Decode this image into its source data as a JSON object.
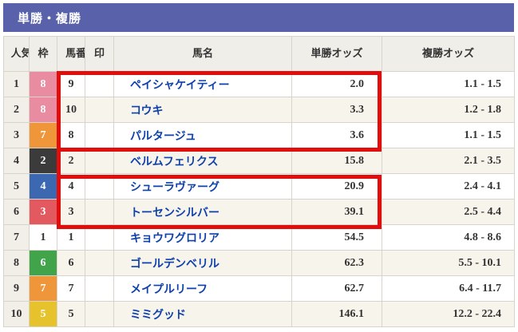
{
  "title_bar": {
    "title": "単勝・複勝"
  },
  "table": {
    "columns": [
      {
        "key": "rank",
        "label": "人気"
      },
      {
        "key": "waku",
        "label": "枠"
      },
      {
        "key": "uma",
        "label": "馬番"
      },
      {
        "key": "mark",
        "label": "印"
      },
      {
        "key": "name",
        "label": "馬名"
      },
      {
        "key": "win",
        "label": "単勝オッズ"
      },
      {
        "key": "place",
        "label": "複勝オッズ"
      }
    ],
    "rows": [
      {
        "rank": "1",
        "waku": "8",
        "uma": "9",
        "mark": "",
        "name": "ペイシャケイティー",
        "win": "2.0",
        "place": "1.1 - 1.5"
      },
      {
        "rank": "2",
        "waku": "8",
        "uma": "10",
        "mark": "",
        "name": "コウキ",
        "win": "3.3",
        "place": "1.2 - 1.8"
      },
      {
        "rank": "3",
        "waku": "7",
        "uma": "8",
        "mark": "",
        "name": "パルタージュ",
        "win": "3.6",
        "place": "1.1 - 1.5"
      },
      {
        "rank": "4",
        "waku": "2",
        "uma": "2",
        "mark": "",
        "name": "ベルムフェリクス",
        "win": "15.8",
        "place": "2.1 - 3.5"
      },
      {
        "rank": "5",
        "waku": "4",
        "uma": "4",
        "mark": "",
        "name": "シューラヴァーグ",
        "win": "20.9",
        "place": "2.4 - 4.1"
      },
      {
        "rank": "6",
        "waku": "3",
        "uma": "3",
        "mark": "",
        "name": "トーセンシルバー",
        "win": "39.1",
        "place": "2.5 - 4.4"
      },
      {
        "rank": "7",
        "waku": "1",
        "uma": "1",
        "mark": "",
        "name": "キョウワグロリア",
        "win": "54.5",
        "place": "4.8 - 8.6"
      },
      {
        "rank": "8",
        "waku": "6",
        "uma": "6",
        "mark": "",
        "name": "ゴールデンベリル",
        "win": "62.3",
        "place": "5.5 - 10.1"
      },
      {
        "rank": "9",
        "waku": "7",
        "uma": "7",
        "mark": "",
        "name": "メイプルリーフ",
        "win": "62.7",
        "place": "6.4 - 11.7"
      },
      {
        "rank": "10",
        "waku": "5",
        "uma": "5",
        "mark": "",
        "name": "ミミグッド",
        "win": "146.1",
        "place": "12.2 - 22.4"
      }
    ]
  },
  "colors": {
    "accent_bar": "#5961aa",
    "highlight_box": "#e10e0e",
    "horse_name_link": "#0f41ab",
    "row_alt": "#f7f4ec",
    "waku_bg": {
      "1": "#ffffff",
      "2": "#3b3b3b",
      "3": "#e25a5f",
      "4": "#3c68b2",
      "5": "#e6c22d",
      "6": "#42a44a",
      "7": "#ee9639",
      "8": "#e98ba1"
    },
    "waku_text": {
      "1": "#333333",
      "2": "#ffffff",
      "3": "#ffffff",
      "4": "#ffffff",
      "5": "#ffffff",
      "6": "#ffffff",
      "7": "#ffffff",
      "8": "#ffffff"
    }
  },
  "annotations": {
    "highlight_boxes": [
      {
        "rows": "1-3",
        "columns": "馬番〜単勝オッズ"
      },
      {
        "rows": "5-6",
        "columns": "馬番〜単勝オッズ"
      }
    ]
  }
}
